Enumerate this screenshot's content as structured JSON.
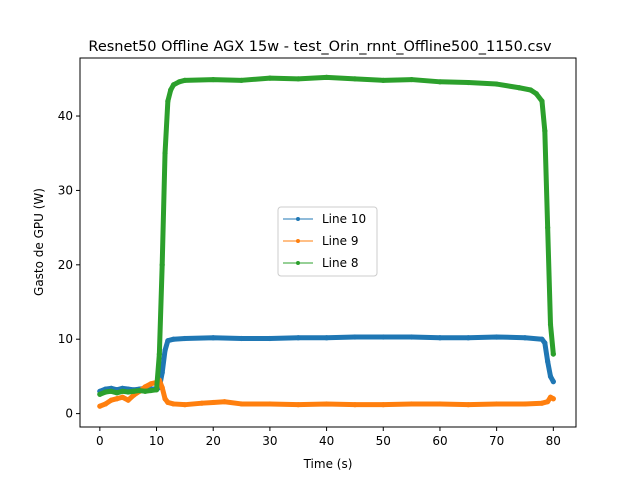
{
  "chart_data": {
    "type": "line",
    "title": "Resnet50 Offline AGX 15w - test_Orin_rnnt_Offline500_1150.csv",
    "xlabel": "Time (s)",
    "ylabel": "Gasto de GPU (W)",
    "xlim": [
      -3.5,
      84
    ],
    "ylim": [
      -1.8,
      47.8
    ],
    "xticks": [
      0,
      10,
      20,
      30,
      40,
      50,
      60,
      70,
      80
    ],
    "yticks": [
      0,
      10,
      20,
      30,
      40
    ],
    "grid": false,
    "legend_position": "center",
    "series": [
      {
        "name": "Line 10",
        "color": "#1f77b4",
        "x": [
          0,
          1,
          2,
          3,
          4,
          5,
          6,
          7,
          8,
          9,
          10,
          10.5,
          11,
          11.5,
          12,
          13,
          15,
          20,
          25,
          30,
          35,
          40,
          45,
          50,
          55,
          60,
          65,
          70,
          75,
          78,
          78.5,
          79,
          79.5,
          80
        ],
        "y": [
          3.0,
          3.3,
          3.4,
          3.2,
          3.4,
          3.3,
          3.2,
          3.3,
          3.4,
          3.3,
          3.3,
          3.5,
          5.5,
          8.5,
          9.8,
          10.0,
          10.1,
          10.2,
          10.1,
          10.1,
          10.2,
          10.2,
          10.3,
          10.3,
          10.3,
          10.2,
          10.2,
          10.3,
          10.2,
          10.0,
          9.5,
          7.0,
          5.0,
          4.3
        ]
      },
      {
        "name": "Line 9",
        "color": "#ff7f0e",
        "x": [
          0,
          1,
          2,
          3,
          4,
          5,
          6,
          7,
          8,
          9,
          10,
          10.5,
          11,
          11.5,
          12,
          13,
          15,
          18,
          20,
          22,
          25,
          30,
          35,
          40,
          45,
          50,
          55,
          60,
          65,
          70,
          75,
          78,
          79,
          79.5,
          80
        ],
        "y": [
          1.0,
          1.3,
          1.8,
          2.0,
          2.2,
          1.8,
          2.5,
          3.0,
          3.6,
          4.0,
          4.2,
          4.5,
          3.5,
          2.0,
          1.5,
          1.3,
          1.2,
          1.4,
          1.5,
          1.6,
          1.3,
          1.3,
          1.2,
          1.3,
          1.2,
          1.2,
          1.3,
          1.3,
          1.2,
          1.3,
          1.3,
          1.4,
          1.6,
          2.2,
          2.0
        ]
      },
      {
        "name": "Line 8",
        "color": "#2ca02c",
        "x": [
          0,
          1,
          2,
          3,
          4,
          5,
          6,
          7,
          8,
          9,
          10,
          10.5,
          11,
          11.5,
          12,
          12.5,
          13,
          14,
          15,
          20,
          25,
          30,
          35,
          40,
          45,
          50,
          55,
          60,
          65,
          70,
          74,
          76,
          77,
          78,
          78.5,
          79,
          79.5,
          80
        ],
        "y": [
          2.6,
          2.9,
          3.0,
          2.8,
          3.0,
          2.9,
          3.0,
          3.1,
          3.0,
          3.1,
          3.2,
          8.0,
          20.0,
          35.0,
          42.0,
          43.5,
          44.2,
          44.6,
          44.8,
          44.9,
          44.8,
          45.1,
          45.0,
          45.2,
          45.0,
          44.8,
          44.9,
          44.6,
          44.5,
          44.3,
          43.8,
          43.5,
          43.0,
          42.0,
          38.0,
          25.0,
          12.0,
          8.0
        ]
      }
    ]
  }
}
